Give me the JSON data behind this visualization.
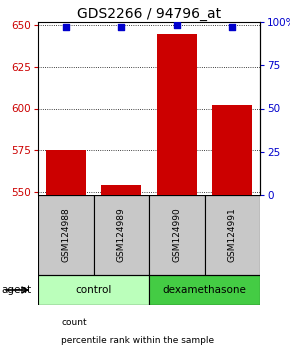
{
  "title": "GDS2266 / 94796_at",
  "samples": [
    "GSM124988",
    "GSM124989",
    "GSM124990",
    "GSM124991"
  ],
  "counts": [
    575,
    554,
    645,
    602
  ],
  "percentiles": [
    97,
    97,
    98,
    97
  ],
  "ylim_left": [
    548,
    652
  ],
  "ylim_right": [
    0,
    100
  ],
  "yticks_left": [
    550,
    575,
    600,
    625,
    650
  ],
  "yticks_right": [
    0,
    25,
    50,
    75,
    100
  ],
  "ytick_right_labels": [
    "0",
    "25",
    "50",
    "75",
    "100%"
  ],
  "bar_color": "#cc0000",
  "dot_color": "#0000cc",
  "bar_width": 0.72,
  "groups": [
    {
      "label": "control",
      "samples": [
        0,
        1
      ],
      "color": "#bbffbb"
    },
    {
      "label": "dexamethasone",
      "samples": [
        2,
        3
      ],
      "color": "#44cc44"
    }
  ],
  "agent_label": "agent",
  "legend_items": [
    {
      "label": "count",
      "color": "#cc0000"
    },
    {
      "label": "percentile rank within the sample",
      "color": "#0000cc"
    }
  ],
  "background_color": "#ffffff",
  "sample_box_color": "#c8c8c8",
  "title_fontsize": 10,
  "tick_fontsize": 7.5,
  "sample_fontsize": 6.5,
  "agent_fontsize": 7.5,
  "legend_fontsize": 6.5
}
